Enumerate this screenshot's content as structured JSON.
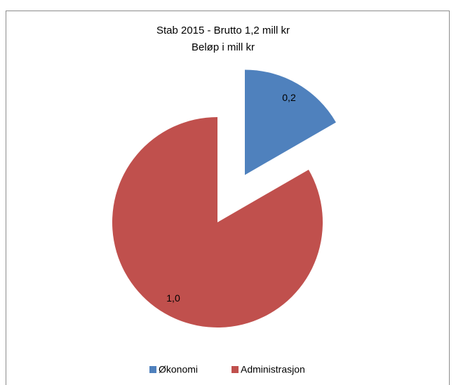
{
  "chart_data": {
    "type": "pie",
    "title": [
      "Stab 2015 - Brutto 1,2 mill kr",
      "Beløp i mill kr"
    ],
    "categories": [
      "Økonomi",
      "Administrasjon"
    ],
    "values": [
      0.2,
      1.0
    ],
    "value_labels": [
      "0,2",
      "1,0"
    ],
    "colors": [
      "#4f81bd",
      "#c0504d"
    ],
    "legend": "bottom"
  }
}
